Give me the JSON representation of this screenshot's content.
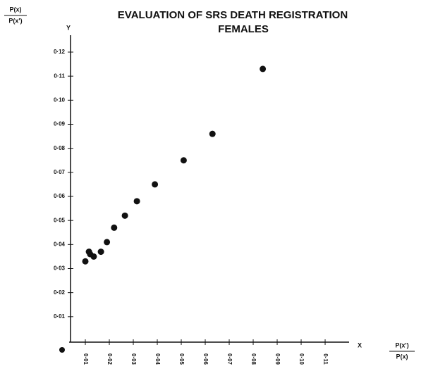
{
  "chart_data": {
    "type": "scatter",
    "title": "EVALUATION OF SRS DEATH REGISTRATION",
    "subtitle": "FEMALES",
    "y_label": {
      "numerator": "P(x)",
      "denominator": "P(x')"
    },
    "x_label": {
      "numerator": "P(x')",
      "denominator": "P(x)"
    },
    "y_axis_letter": "Y",
    "x_axis_letter": "X",
    "color": "#111111",
    "x": [
      0.01,
      0.0115,
      0.012,
      0.0135,
      0.0165,
      0.019,
      0.022,
      0.0265,
      0.0315,
      0.039,
      0.051,
      0.063,
      0.084
    ],
    "values": [
      0.033,
      0.037,
      0.036,
      0.035,
      0.037,
      0.041,
      0.047,
      0.052,
      0.058,
      0.065,
      0.075,
      0.086,
      0.113
    ],
    "xlim": [
      0,
      0.12
    ],
    "ylim": [
      0,
      0.12
    ],
    "xticks": [
      {
        "value": 0.01,
        "label": "0·01"
      },
      {
        "value": 0.02,
        "label": "0·02"
      },
      {
        "value": 0.03,
        "label": "0·03"
      },
      {
        "value": 0.04,
        "label": "0·04"
      },
      {
        "value": 0.05,
        "label": "0·05"
      },
      {
        "value": 0.06,
        "label": "0·06"
      },
      {
        "value": 0.07,
        "label": "0·07"
      },
      {
        "value": 0.08,
        "label": "0·08"
      },
      {
        "value": 0.09,
        "label": "0·09"
      },
      {
        "value": 0.1,
        "label": "0·10"
      },
      {
        "value": 0.11,
        "label": "0·11"
      }
    ],
    "yticks": [
      {
        "value": 0.01,
        "label": "0·01"
      },
      {
        "value": 0.02,
        "label": "0·02"
      },
      {
        "value": 0.03,
        "label": "0·03"
      },
      {
        "value": 0.04,
        "label": "0·04"
      },
      {
        "value": 0.05,
        "label": "0·05"
      },
      {
        "value": 0.06,
        "label": "0·06"
      },
      {
        "value": 0.07,
        "label": "0·07"
      },
      {
        "value": 0.08,
        "label": "0·08"
      },
      {
        "value": 0.09,
        "label": "0·09"
      },
      {
        "value": 0.1,
        "label": "0·10"
      },
      {
        "value": 0.11,
        "label": "0·11"
      },
      {
        "value": 0.12,
        "label": "0·12"
      }
    ]
  }
}
